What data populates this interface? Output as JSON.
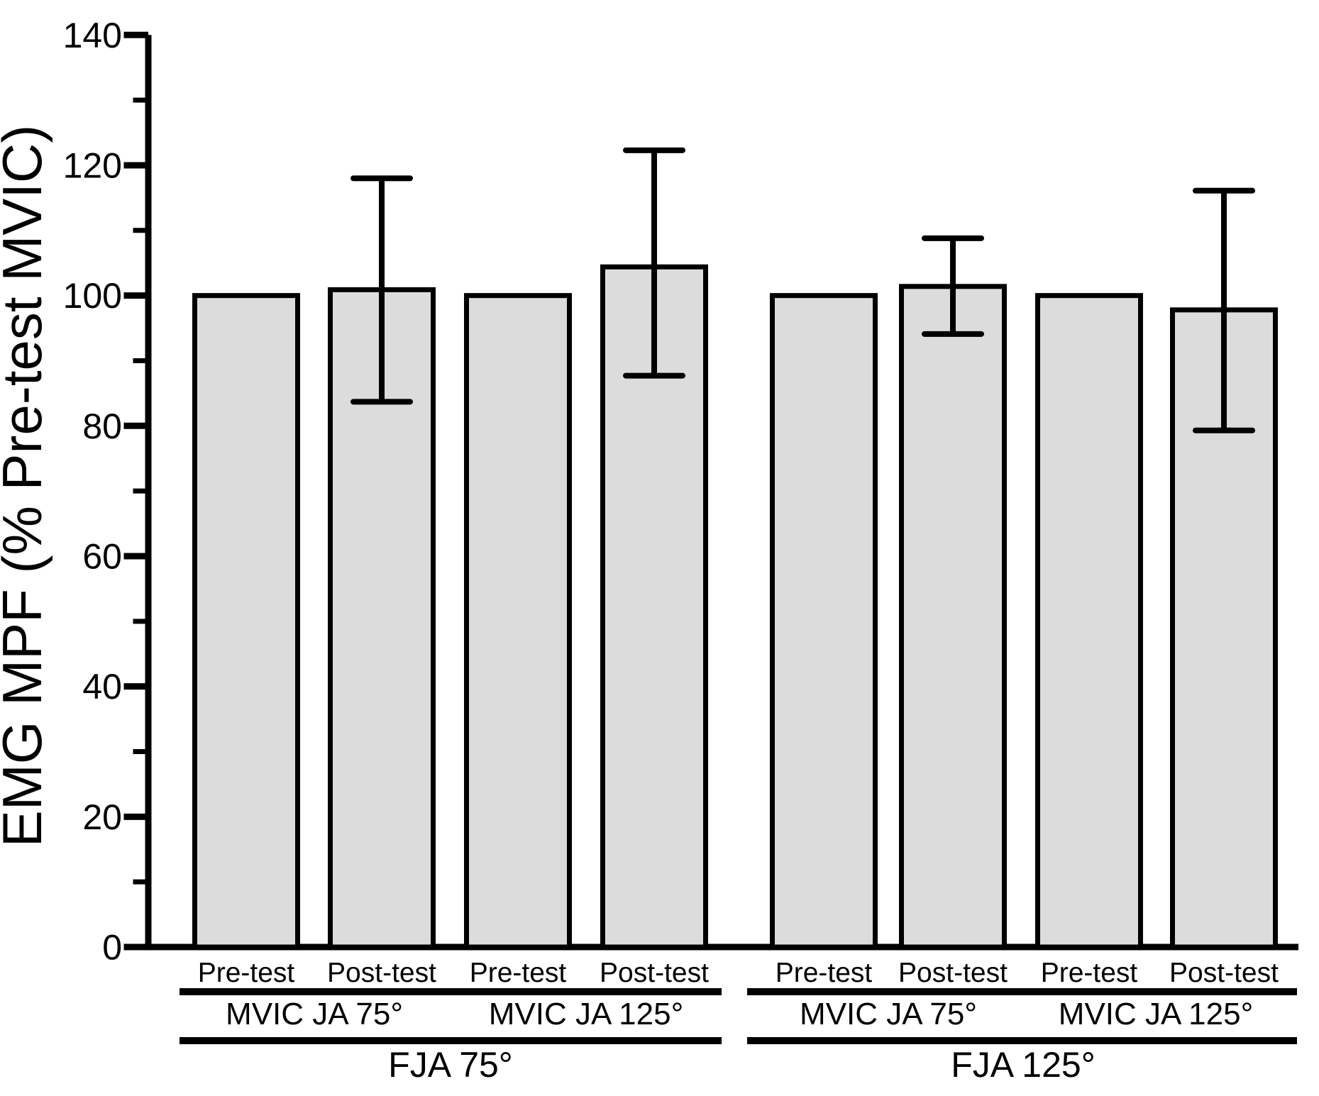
{
  "figure": {
    "background_color": "#ffffff",
    "foreground_color": "#000000"
  },
  "chart_data": {
    "type": "bar",
    "title": "",
    "xlabel": "",
    "ylabel": "EMG MPF (% Pre-test MVIC)",
    "ylim": [
      0,
      140
    ],
    "ytick_major_interval": 20,
    "ytick_minor_interval": 10,
    "yticks": [
      0,
      20,
      40,
      60,
      80,
      100,
      120,
      140
    ],
    "grid": "off",
    "legend": "none",
    "bar_fill_color": "#dcdcdc",
    "bar_edge_color": "#000000",
    "error_bar_color": "#000000",
    "bars": [
      {
        "condition": "Pre-test",
        "mvic_group": "MVIC JA 75°",
        "fja_group": "FJA 75°",
        "value": 100.0,
        "err_low": null,
        "err_high": null
      },
      {
        "condition": "Post-test",
        "mvic_group": "MVIC JA 75°",
        "fja_group": "FJA 75°",
        "value": 100.9,
        "err_low": 83.7,
        "err_high": 118.0
      },
      {
        "condition": "Pre-test",
        "mvic_group": "MVIC JA 125°",
        "fja_group": "FJA 75°",
        "value": 100.0,
        "err_low": null,
        "err_high": null
      },
      {
        "condition": "Post-test",
        "mvic_group": "MVIC JA 125°",
        "fja_group": "FJA 75°",
        "value": 104.4,
        "err_low": 87.7,
        "err_high": 122.3
      },
      {
        "condition": "Pre-test",
        "mvic_group": "MVIC JA 75°",
        "fja_group": "FJA 125°",
        "value": 100.0,
        "err_low": null,
        "err_high": null
      },
      {
        "condition": "Post-test",
        "mvic_group": "MVIC JA 75°",
        "fja_group": "FJA 125°",
        "value": 101.4,
        "err_low": 94.1,
        "err_high": 108.8
      },
      {
        "condition": "Pre-test",
        "mvic_group": "MVIC JA 125°",
        "fja_group": "FJA 125°",
        "value": 100.0,
        "err_low": null,
        "err_high": null
      },
      {
        "condition": "Post-test",
        "mvic_group": "MVIC JA 125°",
        "fja_group": "FJA 125°",
        "value": 97.8,
        "err_low": 79.3,
        "err_high": 116.1
      }
    ],
    "mvic_group_labels": [
      "MVIC JA 75°",
      "MVIC JA 125°",
      "MVIC JA 75°",
      "MVIC JA 125°"
    ],
    "fja_group_labels": [
      "FJA 75°",
      "FJA 125°"
    ]
  }
}
